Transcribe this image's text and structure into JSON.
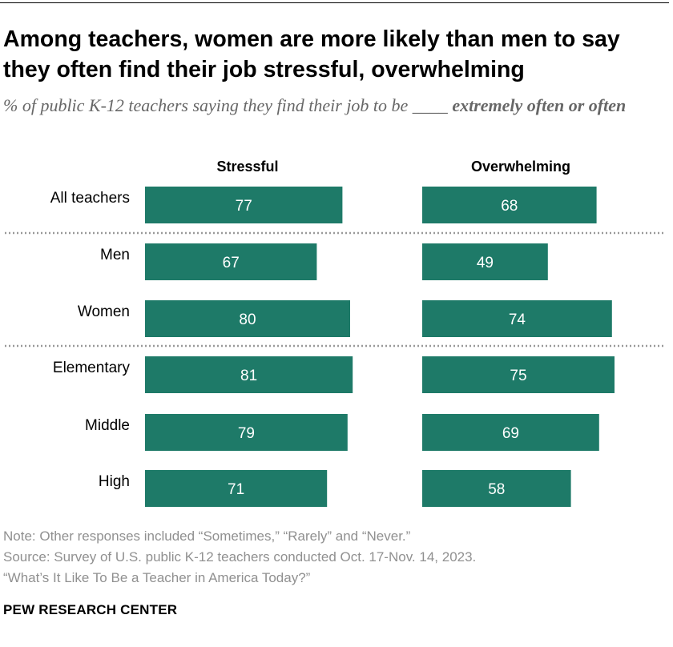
{
  "title": "Among teachers, women are more likely than men to say they often find their job stressful, overwhelming",
  "subtitle_plain": "% of public K-12 teachers saying they find their job to be ____ ",
  "subtitle_bold": "extremely often or often",
  "chart_data": {
    "type": "bar",
    "orientation": "horizontal",
    "categories": [
      "All teachers",
      "Men",
      "Women",
      "Elementary",
      "Middle",
      "High"
    ],
    "groups": [
      {
        "categories": [
          "All teachers"
        ]
      },
      {
        "categories": [
          "Men",
          "Women"
        ]
      },
      {
        "categories": [
          "Elementary",
          "Middle",
          "High"
        ]
      }
    ],
    "series": [
      {
        "name": "Stressful",
        "values": [
          77,
          67,
          80,
          81,
          79,
          71
        ]
      },
      {
        "name": "Overwhelming",
        "values": [
          68,
          49,
          74,
          75,
          69,
          58
        ]
      }
    ],
    "value_labels": true,
    "xlim": [
      0,
      100
    ],
    "bar_color": "#1e7a68",
    "label_color": "#ffffff",
    "grid": false,
    "group_separator": "dotted"
  },
  "notes": {
    "note": "Note: Other responses included “Sometimes,” “Rarely” and “Never.”",
    "source": "Source: Survey of U.S. public K-12 teachers conducted Oct. 17-Nov. 14, 2023.",
    "report": "“What’s It Like To Be a Teacher in America Today?”"
  },
  "org": "PEW RESEARCH CENTER"
}
